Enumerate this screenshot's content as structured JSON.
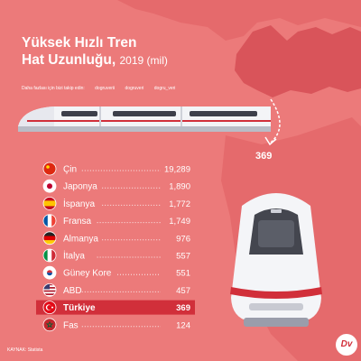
{
  "header": {
    "title_line1": "Yüksek Hızlı Tren",
    "title_line2": "Hat Uzunluğu,",
    "title_sub": "2019 (mil)",
    "follow_text": "Daha fazlası için bizi takip edin:",
    "social": [
      "dogruverii",
      "dogruveri",
      "dogru_veri"
    ]
  },
  "callout": "369",
  "source": "KAYNAK: Statista",
  "logo_text": "Dv",
  "colors": {
    "background": "#ec7a7a",
    "map": "#d9545a",
    "highlight": "#d12f3a",
    "dots": "#ffffff"
  },
  "chart_data": {
    "type": "bar",
    "title": "Yüksek Hızlı Tren Hat Uzunluğu, 2019 (mil)",
    "categories": [
      "Çin",
      "Japonya",
      "İspanya",
      "Fransa",
      "Almanya",
      "İtalya",
      "Güney Kore",
      "ABD",
      "Türkiye",
      "Fas"
    ],
    "values": [
      19289,
      1890,
      1772,
      1749,
      976,
      557,
      551,
      457,
      369,
      124
    ],
    "value_labels": [
      "19,289",
      "1,890",
      "1,772",
      "1,749",
      "976",
      "557",
      "551",
      "457",
      "369",
      "124"
    ],
    "highlight": "Türkiye",
    "flag_icons": [
      "china-flag-icon",
      "japan-flag-icon",
      "spain-flag-icon",
      "france-flag-icon",
      "germany-flag-icon",
      "italy-flag-icon",
      "south-korea-flag-icon",
      "usa-flag-icon",
      "turkey-flag-icon",
      "morocco-flag-icon"
    ]
  }
}
